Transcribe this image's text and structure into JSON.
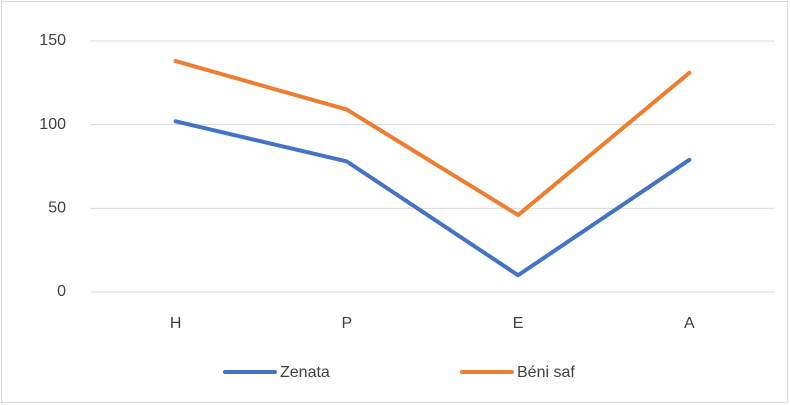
{
  "chart_data": {
    "type": "line",
    "categories": [
      "H",
      "P",
      "E",
      "A"
    ],
    "series": [
      {
        "name": "Zenata",
        "color": "#4472c4",
        "values": [
          102,
          78,
          10,
          79
        ]
      },
      {
        "name": "Béni saf",
        "color": "#ed7d31",
        "values": [
          138,
          109,
          46,
          131
        ]
      }
    ],
    "ylim": [
      0,
      150
    ],
    "yticks": [
      0,
      50,
      100,
      150
    ],
    "grid": true,
    "legend": "bottom"
  }
}
